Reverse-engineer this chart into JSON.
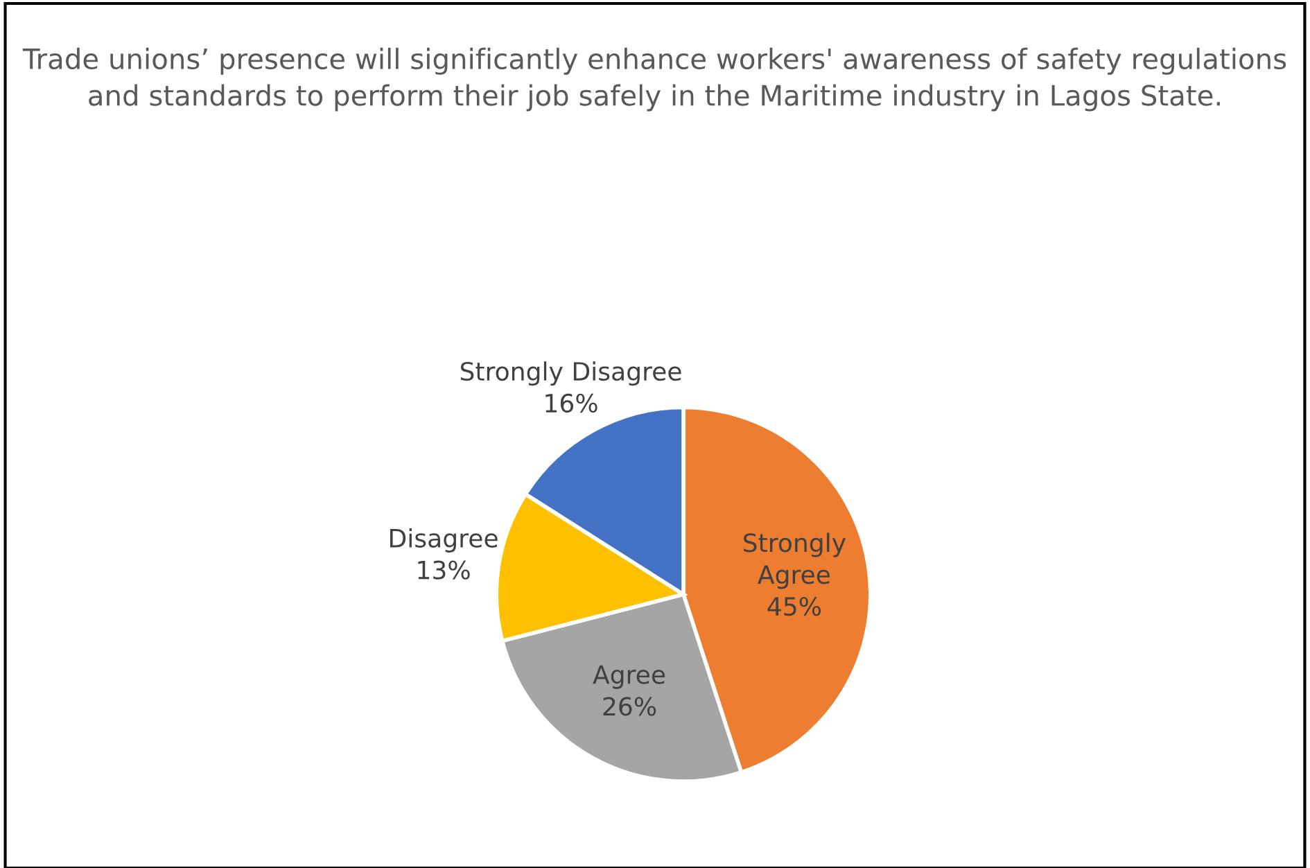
{
  "chart_data": {
    "type": "pie",
    "title": "Trade unions’ presence will significantly enhance workers' awareness of safety regulations and standards to perform their job safely in the Maritime industry in Lagos State.",
    "categories": [
      "Strongly Agree",
      "Agree",
      "Disagree",
      "Strongly Disagree"
    ],
    "values": [
      45,
      26,
      13,
      16
    ],
    "colors": [
      "#ed7d31",
      "#a5a5a5",
      "#ffc000",
      "#4472c4"
    ],
    "value_labels": [
      "45%",
      "26%",
      "13%",
      "16%"
    ],
    "legend": false
  }
}
